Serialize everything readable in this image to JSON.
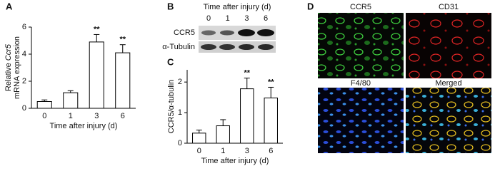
{
  "chart_data": [
    {
      "type": "bar",
      "panel_label": "A",
      "ylabel": [
        [
          {
            "text": "Relative "
          },
          {
            "text": "Ccr5",
            "italic": true
          }
        ],
        [
          {
            "text": "mRNA expression"
          }
        ]
      ],
      "xlabel": "Time after injury (d)",
      "categories": [
        "0",
        "1",
        "3",
        "6"
      ],
      "values": [
        0.5,
        1.15,
        4.9,
        4.1
      ],
      "errors": [
        0.12,
        0.15,
        0.55,
        0.6
      ],
      "annotations": [
        null,
        null,
        "**",
        "**"
      ],
      "color": "#ffffff",
      "ylim": [
        0,
        6
      ],
      "yticks": [
        0,
        2,
        4,
        6
      ]
    },
    {
      "type": "bar",
      "panel_label": "C",
      "ylabel": [
        [
          {
            "text": "CCR5/α-tubulin"
          }
        ]
      ],
      "xlabel": "Time after injury (d)",
      "categories": [
        "0",
        "1",
        "3",
        "6"
      ],
      "values": [
        0.33,
        0.57,
        1.78,
        1.48
      ],
      "errors": [
        0.1,
        0.2,
        0.35,
        0.35
      ],
      "annotations": [
        null,
        null,
        "**",
        "**"
      ],
      "color": "#ffffff",
      "ylim": [
        0,
        2.4
      ],
      "yticks": [
        0,
        1,
        2
      ]
    }
  ],
  "blot": {
    "panel_label": "B",
    "title": "Time after injury (d)",
    "lanes": [
      "0",
      "1",
      "3",
      "6"
    ],
    "rows": [
      "CCR5",
      "α-Tubulin"
    ]
  },
  "micrographs": {
    "panel_label": "D",
    "labels": [
      "CCR5",
      "CD31",
      "F4/80",
      "Merged"
    ]
  }
}
